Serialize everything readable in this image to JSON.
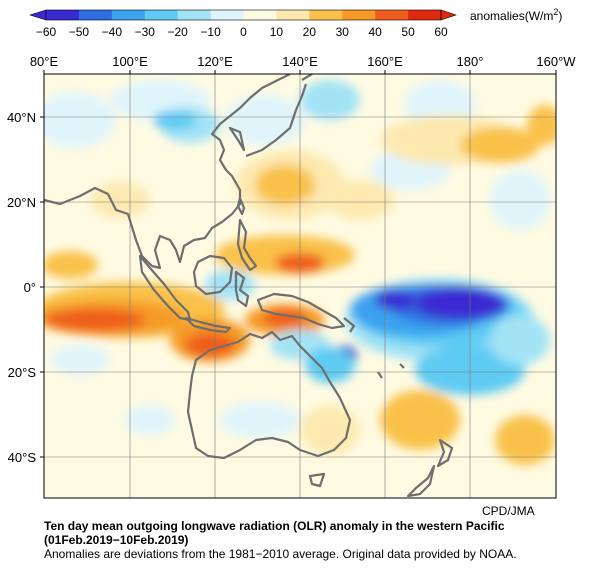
{
  "colorbar": {
    "ticks": [
      "−60",
      "−50",
      "−40",
      "−30",
      "−20",
      "−10",
      "0",
      "10",
      "20",
      "30",
      "40",
      "50",
      "60"
    ],
    "unit_prefix": "anomalies(W/m",
    "unit_exp": "2",
    "unit_suffix": ")",
    "colors": [
      "#3a2ad1",
      "#2e6de0",
      "#3aa2ee",
      "#5fcbf3",
      "#a3e3f6",
      "#dff4fb",
      "#fffbe3",
      "#fde9b0",
      "#f9c14a",
      "#f59a26",
      "#ef5d1c",
      "#e02a10"
    ]
  },
  "map": {
    "lon_labels": [
      "80°E",
      "100°E",
      "120°E",
      "140°E",
      "160°E",
      "180°",
      "160°W"
    ],
    "lat_labels": [
      "40°N",
      "20°N",
      "0°",
      "20°S",
      "40°S"
    ]
  },
  "credit": "CPD/JMA",
  "caption": {
    "line1": "Ten day mean outgoing longwave radiation (OLR) anomaly in the western Pacific",
    "line2": "(01Feb.2019−10Feb.2019)",
    "line3": "Anomalies are deviations from the 1981−2010 average. Original data provided by NOAA."
  },
  "colors": {
    "coastline": "#6e6e6e",
    "grid": "#7a7a7a",
    "frame": "#000000"
  }
}
